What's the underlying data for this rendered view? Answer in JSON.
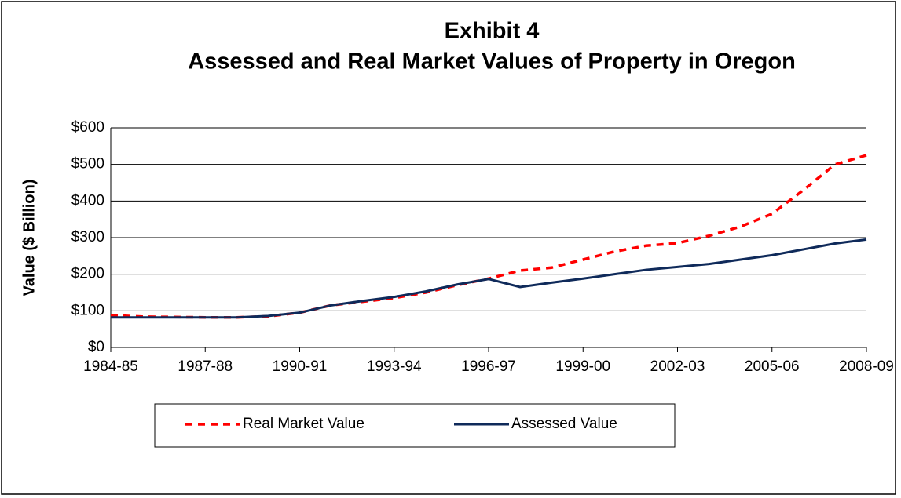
{
  "chart_data": {
    "type": "line",
    "title": [
      "Exhibit 4",
      "Assessed and Real Market Values of Property in Oregon"
    ],
    "y_label": "Value ($ Billion)",
    "categories": [
      "1984-85",
      null,
      null,
      "1987-88",
      null,
      null,
      "1990-91",
      null,
      null,
      "1993-94",
      null,
      null,
      "1996-97",
      null,
      null,
      "1999-00",
      null,
      null,
      "2002-03",
      null,
      null,
      "2005-06",
      null,
      null,
      "2008-09"
    ],
    "series": [
      {
        "name": "Real Market Value",
        "color": "#ff0000",
        "dash": true,
        "values": [
          88,
          84,
          83,
          82,
          82,
          85,
          95,
          115,
          125,
          135,
          150,
          170,
          188,
          210,
          218,
          240,
          262,
          278,
          285,
          305,
          330,
          365,
          430,
          500,
          525
        ]
      },
      {
        "name": "Assessed Value",
        "color": "#0f2a5a",
        "dash": false,
        "values": [
          82,
          82,
          82,
          82,
          82,
          86,
          95,
          115,
          127,
          138,
          153,
          172,
          187,
          165,
          177,
          188,
          200,
          212,
          220,
          228,
          240,
          252,
          268,
          284,
          295
        ]
      }
    ],
    "ylim": [
      0,
      600
    ],
    "yticks": [
      {
        "value": 0,
        "label": "$0"
      },
      {
        "value": 100,
        "label": "$100"
      },
      {
        "value": 200,
        "label": "$200"
      },
      {
        "value": 300,
        "label": "$300"
      },
      {
        "value": 400,
        "label": "$400"
      },
      {
        "value": 500,
        "label": "$500"
      },
      {
        "value": 600,
        "label": "$600"
      }
    ],
    "grid": true,
    "legend": "bottom"
  }
}
